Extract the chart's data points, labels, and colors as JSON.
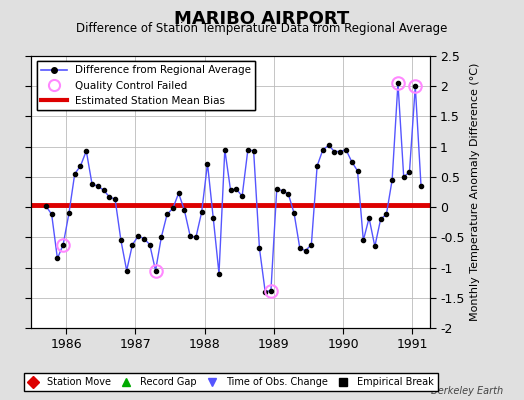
{
  "title": "MARIBO AIRPORT",
  "subtitle": "Difference of Station Temperature Data from Regional Average",
  "ylabel": "Monthly Temperature Anomaly Difference (°C)",
  "watermark": "Berkeley Earth",
  "xlim": [
    1985.5,
    1991.25
  ],
  "ylim": [
    -2.0,
    2.5
  ],
  "yticks": [
    -2.0,
    -1.5,
    -1.0,
    -0.5,
    0.0,
    0.5,
    1.0,
    1.5,
    2.0,
    2.5
  ],
  "ytick_labels": [
    "-2",
    "-1.5",
    "-1",
    "-0.5",
    "0",
    "0.5",
    "1",
    "1.5",
    "2",
    "2.5"
  ],
  "xticks": [
    1986,
    1987,
    1988,
    1989,
    1990,
    1991
  ],
  "bias_value": 0.04,
  "background_color": "#e0e0e0",
  "plot_bg_color": "#ffffff",
  "line_color": "#5555ff",
  "bias_color": "#dd0000",
  "qc_color": "#ff88ff",
  "data": [
    [
      1985.708,
      0.02
    ],
    [
      1985.792,
      -0.12
    ],
    [
      1985.875,
      -0.85
    ],
    [
      1985.958,
      -0.62
    ],
    [
      1986.042,
      -0.1
    ],
    [
      1986.125,
      0.55
    ],
    [
      1986.208,
      0.68
    ],
    [
      1986.292,
      0.93
    ],
    [
      1986.375,
      0.38
    ],
    [
      1986.458,
      0.35
    ],
    [
      1986.542,
      0.28
    ],
    [
      1986.625,
      0.17
    ],
    [
      1986.708,
      0.13
    ],
    [
      1986.792,
      -0.55
    ],
    [
      1986.875,
      -1.05
    ],
    [
      1986.958,
      -0.62
    ],
    [
      1987.042,
      -0.48
    ],
    [
      1987.125,
      -0.52
    ],
    [
      1987.208,
      -0.62
    ],
    [
      1987.292,
      -1.05
    ],
    [
      1987.375,
      -0.5
    ],
    [
      1987.458,
      -0.12
    ],
    [
      1987.542,
      -0.02
    ],
    [
      1987.625,
      0.23
    ],
    [
      1987.708,
      -0.05
    ],
    [
      1987.792,
      -0.48
    ],
    [
      1987.875,
      -0.5
    ],
    [
      1987.958,
      -0.08
    ],
    [
      1988.042,
      0.72
    ],
    [
      1988.125,
      -0.18
    ],
    [
      1988.208,
      -1.1
    ],
    [
      1988.292,
      0.95
    ],
    [
      1988.375,
      0.28
    ],
    [
      1988.458,
      0.3
    ],
    [
      1988.542,
      0.18
    ],
    [
      1988.625,
      0.95
    ],
    [
      1988.708,
      0.93
    ],
    [
      1988.792,
      -0.68
    ],
    [
      1988.875,
      -1.4
    ],
    [
      1988.958,
      -1.38
    ],
    [
      1989.042,
      0.3
    ],
    [
      1989.125,
      0.27
    ],
    [
      1989.208,
      0.22
    ],
    [
      1989.292,
      -0.1
    ],
    [
      1989.375,
      -0.68
    ],
    [
      1989.458,
      -0.72
    ],
    [
      1989.542,
      -0.62
    ],
    [
      1989.625,
      0.68
    ],
    [
      1989.708,
      0.95
    ],
    [
      1989.792,
      1.02
    ],
    [
      1989.875,
      0.92
    ],
    [
      1989.958,
      0.92
    ],
    [
      1990.042,
      0.95
    ],
    [
      1990.125,
      0.75
    ],
    [
      1990.208,
      0.6
    ],
    [
      1990.292,
      -0.55
    ],
    [
      1990.375,
      -0.18
    ],
    [
      1990.458,
      -0.65
    ],
    [
      1990.542,
      -0.2
    ],
    [
      1990.625,
      -0.12
    ],
    [
      1990.708,
      0.45
    ],
    [
      1990.792,
      2.05
    ],
    [
      1990.875,
      0.5
    ],
    [
      1990.958,
      0.58
    ],
    [
      1991.042,
      2.0
    ],
    [
      1991.125,
      0.35
    ]
  ],
  "qc_points": [
    [
      1985.958,
      -0.62
    ],
    [
      1987.292,
      -1.05
    ],
    [
      1988.958,
      -1.38
    ],
    [
      1990.792,
      2.05
    ],
    [
      1991.042,
      2.0
    ]
  ],
  "bottom_legend": [
    {
      "label": "Station Move",
      "marker": "D",
      "color": "#dd0000"
    },
    {
      "label": "Record Gap",
      "marker": "^",
      "color": "#00aa00"
    },
    {
      "label": "Time of Obs. Change",
      "marker": "v",
      "color": "#5555ff"
    },
    {
      "label": "Empirical Break",
      "marker": "s",
      "color": "#000000"
    }
  ]
}
